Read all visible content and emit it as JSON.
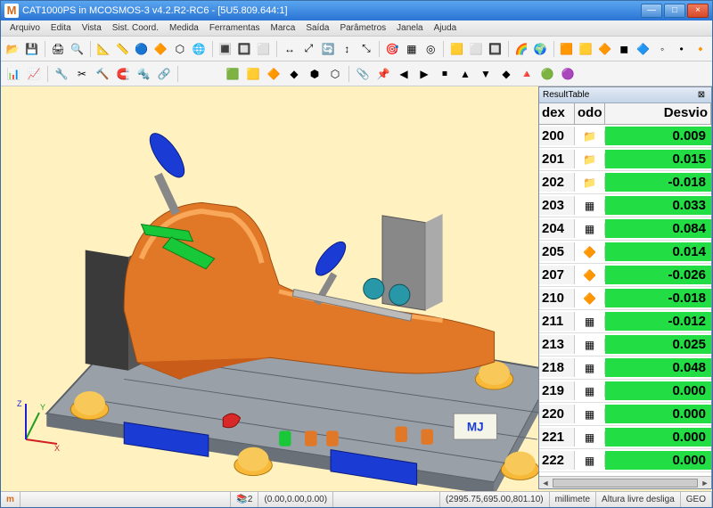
{
  "window": {
    "title": "CAT1000PS in MCOSMOS-3 v4.2.R2-RC6  - [5U5.809.644:1]",
    "buttons": {
      "min": "—",
      "max": "□",
      "close": "×"
    }
  },
  "menu": [
    "Arquivo",
    "Edita",
    "Vista",
    "Sist. Coord.",
    "Medida",
    "Ferramentas",
    "Marca",
    "Saída",
    "Parâmetros",
    "Janela",
    "Ajuda"
  ],
  "toolbars": {
    "row1_icons": [
      "📂",
      "💾",
      "|",
      "🖨",
      "🔍",
      "|",
      "📐",
      "📏",
      "🔵",
      "🔶",
      "⬡",
      "🌐",
      "|",
      "🔳",
      "🔲",
      "⬜",
      "|",
      "↔",
      "⤢",
      "🔄",
      "↕",
      "⤡",
      "|",
      "🎯",
      "▦",
      "◎",
      "|",
      "🟨",
      "⬜",
      "🔲",
      "|",
      "🌈",
      "🌍",
      "|",
      "🟧",
      "🟨",
      "🔶",
      "◼",
      "🔷",
      "◦",
      "•",
      "🔸"
    ],
    "row2_icons": [
      "📊",
      "📈",
      "|",
      "🔧",
      "✂",
      "🔨",
      "🧲",
      "🔩",
      "🔗",
      "|",
      " ",
      " ",
      "🟩",
      "🟨",
      "🔶",
      "◆",
      "⬢",
      "⬡",
      "|",
      "📎",
      "📌",
      "◀",
      "▶",
      "⏹",
      "▲",
      "▼",
      "◆",
      "🔺",
      "🟢",
      "🟣"
    ]
  },
  "resultTable": {
    "title": "ResultTable",
    "headers": [
      "dex",
      "odo",
      "Desvio"
    ],
    "ok_color": "#22dd44",
    "rows": [
      {
        "dex": "200",
        "icon": "📁",
        "desvio": "0.009",
        "bg": "#22dd44"
      },
      {
        "dex": "201",
        "icon": "📁",
        "desvio": "0.015",
        "bg": "#22dd44"
      },
      {
        "dex": "202",
        "icon": "📁",
        "desvio": "-0.018",
        "bg": "#22dd44"
      },
      {
        "dex": "203",
        "icon": "▦",
        "desvio": "0.033",
        "bg": "#22dd44"
      },
      {
        "dex": "204",
        "icon": "▦",
        "desvio": "0.084",
        "bg": "#22dd44"
      },
      {
        "dex": "205",
        "icon": "🔶",
        "desvio": "0.014",
        "bg": "#22dd44"
      },
      {
        "dex": "207",
        "icon": "🔶",
        "desvio": "-0.026",
        "bg": "#22dd44"
      },
      {
        "dex": "210",
        "icon": "🔶",
        "desvio": "-0.018",
        "bg": "#22dd44"
      },
      {
        "dex": "211",
        "icon": "▦",
        "desvio": "-0.012",
        "bg": "#22dd44"
      },
      {
        "dex": "213",
        "icon": "▦",
        "desvio": "0.025",
        "bg": "#22dd44"
      },
      {
        "dex": "218",
        "icon": "▦",
        "desvio": "0.048",
        "bg": "#22dd44"
      },
      {
        "dex": "219",
        "icon": "▦",
        "desvio": "0.000",
        "bg": "#22dd44"
      },
      {
        "dex": "220",
        "icon": "▦",
        "desvio": "0.000",
        "bg": "#22dd44"
      },
      {
        "dex": "221",
        "icon": "▦",
        "desvio": "0.000",
        "bg": "#22dd44"
      },
      {
        "dex": "222",
        "icon": "▦",
        "desvio": "0.000",
        "bg": "#22dd44"
      }
    ]
  },
  "axis": {
    "x": "X",
    "y": "Y",
    "z": "Z"
  },
  "viewport": {
    "bg": "#fff2c0",
    "plate_fill": "#9aa0a8",
    "plate_stroke": "#5a6068",
    "part_fill": "#e07828",
    "part_hilite": "#f8a050",
    "part_shadow": "#a04c10",
    "clamp_blue": "#1a3cd4",
    "clamp_green": "#18c838",
    "pillar": "#4a4a4a",
    "dome": "#f8b838",
    "mj_label": "MJ"
  },
  "status": {
    "indicator1_color": "#d86b18",
    "layers": "2",
    "coords1": "(0.00,0.00,0.00)",
    "coords2": "(2995.75,695.00,801.10)",
    "units": "millimete",
    "mode": "Altura livre desliga",
    "geo": "GEO"
  }
}
